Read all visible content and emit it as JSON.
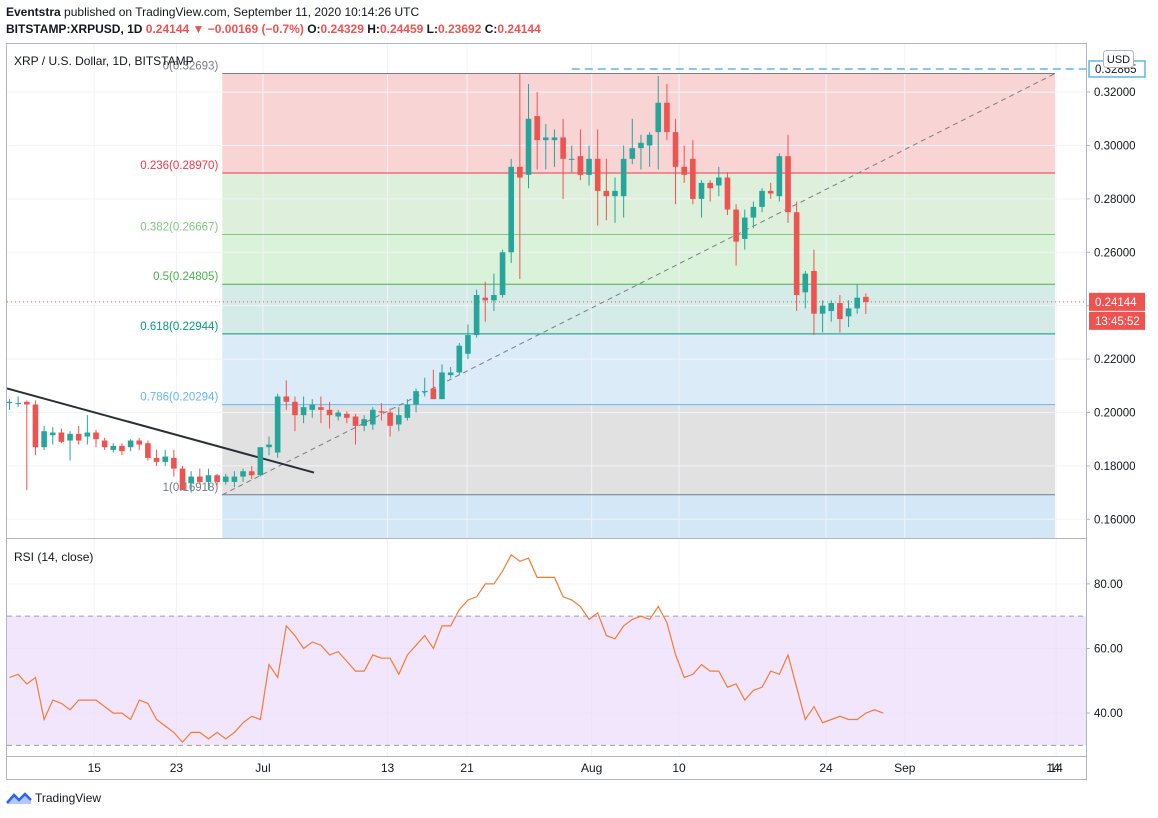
{
  "header": {
    "publisher": "Eventstra",
    "published_text": "published on TradingView.com, September 11, 2020 10:14:26 UTC",
    "symbol": "BITSTAMP:XRPUSD, 1D",
    "last": "0.24144",
    "arrow": "▼",
    "change": "−0.00169 (−0.7%)",
    "o_label": "O:",
    "o": "0.24329",
    "h_label": "H:",
    "h": "0.24459",
    "l_label": "L:",
    "l": "0.23692",
    "c_label": "C:",
    "c": "0.24144"
  },
  "footer": {
    "brand": "TradingView"
  },
  "chart_data": [
    {
      "type": "candlestick",
      "title": "XRP / U.S. Dollar, 1D, BITSTAMP",
      "currency_button": "USD",
      "ylim": [
        0.153,
        0.338
      ],
      "y_ticks": [
        "0.32000",
        "0.30000",
        "0.28000",
        "0.26000",
        "0.24000",
        "0.22000",
        "0.20000",
        "0.18000",
        "0.16000"
      ],
      "y_tick_values": [
        0.32,
        0.3,
        0.28,
        0.26,
        0.24,
        0.22,
        0.2,
        0.18,
        0.16
      ],
      "price_tags": [
        {
          "value": 0.32865,
          "text": "0.32865",
          "style": "outline"
        },
        {
          "value": 0.24144,
          "text": "0.24144",
          "style": "red"
        },
        {
          "text": "13:45:52",
          "style": "red-timer"
        }
      ],
      "fib_levels": [
        {
          "ratio": "0",
          "price": 0.32693,
          "label": "0(0.32693)",
          "color": "#787b86"
        },
        {
          "ratio": "0.236",
          "price": 0.2897,
          "label": "0.236(0.28970)",
          "color": "#f23645"
        },
        {
          "ratio": "0.382",
          "price": 0.26667,
          "label": "0.382(0.26667)",
          "color": "#81c784"
        },
        {
          "ratio": "0.5",
          "price": 0.24805,
          "label": "0.5(0.24805)",
          "color": "#4caf50"
        },
        {
          "ratio": "0.618",
          "price": 0.22944,
          "label": "0.618(0.22944)",
          "color": "#089981"
        },
        {
          "ratio": "0.786",
          "price": 0.20294,
          "label": "0.786(0.20294)",
          "color": "#64b5f6"
        },
        {
          "ratio": "1",
          "price": 0.16918,
          "label": "1(0.16918)",
          "color": "#787b86"
        }
      ],
      "x_ticks": [
        "15",
        "23",
        "Jul",
        "13",
        "21",
        "Aug",
        "10",
        "24",
        "Sep",
        "14"
      ],
      "candles": [
        {
          "o": 0.2035,
          "h": 0.205,
          "l": 0.201,
          "c": 0.204
        },
        {
          "o": 0.2035,
          "h": 0.206,
          "l": 0.202,
          "c": 0.2035
        },
        {
          "o": 0.204,
          "h": 0.2045,
          "l": 0.171,
          "c": 0.203
        },
        {
          "o": 0.203,
          "h": 0.2045,
          "l": 0.184,
          "c": 0.187
        },
        {
          "o": 0.187,
          "h": 0.195,
          "l": 0.186,
          "c": 0.193
        },
        {
          "o": 0.1915,
          "h": 0.1945,
          "l": 0.188,
          "c": 0.1925
        },
        {
          "o": 0.1925,
          "h": 0.194,
          "l": 0.1885,
          "c": 0.189
        },
        {
          "o": 0.1895,
          "h": 0.193,
          "l": 0.182,
          "c": 0.192
        },
        {
          "o": 0.192,
          "h": 0.195,
          "l": 0.188,
          "c": 0.1895
        },
        {
          "o": 0.191,
          "h": 0.199,
          "l": 0.188,
          "c": 0.1925
        },
        {
          "o": 0.1925,
          "h": 0.1935,
          "l": 0.187,
          "c": 0.19
        },
        {
          "o": 0.1895,
          "h": 0.1905,
          "l": 0.186,
          "c": 0.187
        },
        {
          "o": 0.186,
          "h": 0.1885,
          "l": 0.185,
          "c": 0.1875
        },
        {
          "o": 0.1875,
          "h": 0.1885,
          "l": 0.184,
          "c": 0.1855
        },
        {
          "o": 0.187,
          "h": 0.19,
          "l": 0.1855,
          "c": 0.1895
        },
        {
          "o": 0.1895,
          "h": 0.1905,
          "l": 0.186,
          "c": 0.188
        },
        {
          "o": 0.1885,
          "h": 0.1895,
          "l": 0.182,
          "c": 0.183
        },
        {
          "o": 0.183,
          "h": 0.186,
          "l": 0.18,
          "c": 0.1815
        },
        {
          "o": 0.1815,
          "h": 0.186,
          "l": 0.18,
          "c": 0.1835
        },
        {
          "o": 0.183,
          "h": 0.186,
          "l": 0.176,
          "c": 0.179
        },
        {
          "o": 0.179,
          "h": 0.18,
          "l": 0.171,
          "c": 0.171
        },
        {
          "o": 0.1735,
          "h": 0.178,
          "l": 0.17,
          "c": 0.176
        },
        {
          "o": 0.176,
          "h": 0.179,
          "l": 0.173,
          "c": 0.174
        },
        {
          "o": 0.174,
          "h": 0.179,
          "l": 0.171,
          "c": 0.1765
        },
        {
          "o": 0.1765,
          "h": 0.177,
          "l": 0.172,
          "c": 0.174
        },
        {
          "o": 0.174,
          "h": 0.177,
          "l": 0.173,
          "c": 0.176
        },
        {
          "o": 0.174,
          "h": 0.178,
          "l": 0.172,
          "c": 0.176
        },
        {
          "o": 0.176,
          "h": 0.179,
          "l": 0.174,
          "c": 0.178
        },
        {
          "o": 0.178,
          "h": 0.18,
          "l": 0.175,
          "c": 0.1765
        },
        {
          "o": 0.1765,
          "h": 0.187,
          "l": 0.176,
          "c": 0.187
        },
        {
          "o": 0.187,
          "h": 0.191,
          "l": 0.184,
          "c": 0.188
        },
        {
          "o": 0.185,
          "h": 0.207,
          "l": 0.183,
          "c": 0.206
        },
        {
          "o": 0.206,
          "h": 0.212,
          "l": 0.201,
          "c": 0.204
        },
        {
          "o": 0.204,
          "h": 0.206,
          "l": 0.193,
          "c": 0.199
        },
        {
          "o": 0.199,
          "h": 0.206,
          "l": 0.196,
          "c": 0.202
        },
        {
          "o": 0.201,
          "h": 0.205,
          "l": 0.198,
          "c": 0.203
        },
        {
          "o": 0.202,
          "h": 0.206,
          "l": 0.196,
          "c": 0.201
        },
        {
          "o": 0.201,
          "h": 0.204,
          "l": 0.194,
          "c": 0.199
        },
        {
          "o": 0.1985,
          "h": 0.201,
          "l": 0.197,
          "c": 0.2
        },
        {
          "o": 0.1995,
          "h": 0.2005,
          "l": 0.196,
          "c": 0.198
        },
        {
          "o": 0.1985,
          "h": 0.1995,
          "l": 0.188,
          "c": 0.195
        },
        {
          "o": 0.195,
          "h": 0.199,
          "l": 0.193,
          "c": 0.1975
        },
        {
          "o": 0.1955,
          "h": 0.202,
          "l": 0.1935,
          "c": 0.201
        },
        {
          "o": 0.2005,
          "h": 0.2035,
          "l": 0.197,
          "c": 0.2
        },
        {
          "o": 0.2,
          "h": 0.2015,
          "l": 0.191,
          "c": 0.195
        },
        {
          "o": 0.1955,
          "h": 0.202,
          "l": 0.193,
          "c": 0.199
        },
        {
          "o": 0.198,
          "h": 0.205,
          "l": 0.197,
          "c": 0.203
        },
        {
          "o": 0.203,
          "h": 0.209,
          "l": 0.2,
          "c": 0.208
        },
        {
          "o": 0.208,
          "h": 0.213,
          "l": 0.206,
          "c": 0.208
        },
        {
          "o": 0.209,
          "h": 0.216,
          "l": 0.205,
          "c": 0.205
        },
        {
          "o": 0.205,
          "h": 0.218,
          "l": 0.205,
          "c": 0.215
        },
        {
          "o": 0.214,
          "h": 0.217,
          "l": 0.213,
          "c": 0.215
        },
        {
          "o": 0.215,
          "h": 0.226,
          "l": 0.214,
          "c": 0.225
        },
        {
          "o": 0.222,
          "h": 0.233,
          "l": 0.22,
          "c": 0.229
        },
        {
          "o": 0.229,
          "h": 0.246,
          "l": 0.228,
          "c": 0.244
        },
        {
          "o": 0.243,
          "h": 0.249,
          "l": 0.234,
          "c": 0.242
        },
        {
          "o": 0.242,
          "h": 0.252,
          "l": 0.238,
          "c": 0.244
        },
        {
          "o": 0.244,
          "h": 0.261,
          "l": 0.243,
          "c": 0.26
        },
        {
          "o": 0.26,
          "h": 0.295,
          "l": 0.256,
          "c": 0.292
        },
        {
          "o": 0.292,
          "h": 0.327,
          "l": 0.25,
          "c": 0.288
        },
        {
          "o": 0.289,
          "h": 0.323,
          "l": 0.284,
          "c": 0.31
        },
        {
          "o": 0.311,
          "h": 0.32,
          "l": 0.291,
          "c": 0.302
        },
        {
          "o": 0.302,
          "h": 0.308,
          "l": 0.291,
          "c": 0.303
        },
        {
          "o": 0.302,
          "h": 0.306,
          "l": 0.292,
          "c": 0.303
        },
        {
          "o": 0.303,
          "h": 0.31,
          "l": 0.28,
          "c": 0.295
        },
        {
          "o": 0.295,
          "h": 0.3,
          "l": 0.29,
          "c": 0.295
        },
        {
          "o": 0.296,
          "h": 0.306,
          "l": 0.287,
          "c": 0.289
        },
        {
          "o": 0.289,
          "h": 0.3,
          "l": 0.285,
          "c": 0.295
        },
        {
          "o": 0.295,
          "h": 0.306,
          "l": 0.27,
          "c": 0.283
        },
        {
          "o": 0.283,
          "h": 0.295,
          "l": 0.272,
          "c": 0.281
        },
        {
          "o": 0.281,
          "h": 0.288,
          "l": 0.271,
          "c": 0.283
        },
        {
          "o": 0.281,
          "h": 0.3,
          "l": 0.273,
          "c": 0.295
        },
        {
          "o": 0.295,
          "h": 0.31,
          "l": 0.293,
          "c": 0.299
        },
        {
          "o": 0.299,
          "h": 0.304,
          "l": 0.291,
          "c": 0.301
        },
        {
          "o": 0.3,
          "h": 0.305,
          "l": 0.292,
          "c": 0.304
        },
        {
          "o": 0.305,
          "h": 0.326,
          "l": 0.291,
          "c": 0.316
        },
        {
          "o": 0.316,
          "h": 0.323,
          "l": 0.302,
          "c": 0.305
        },
        {
          "o": 0.305,
          "h": 0.31,
          "l": 0.278,
          "c": 0.292
        },
        {
          "o": 0.292,
          "h": 0.3,
          "l": 0.286,
          "c": 0.289
        },
        {
          "o": 0.295,
          "h": 0.302,
          "l": 0.278,
          "c": 0.28
        },
        {
          "o": 0.28,
          "h": 0.287,
          "l": 0.273,
          "c": 0.286
        },
        {
          "o": 0.286,
          "h": 0.287,
          "l": 0.279,
          "c": 0.284
        },
        {
          "o": 0.285,
          "h": 0.292,
          "l": 0.281,
          "c": 0.288
        },
        {
          "o": 0.288,
          "h": 0.29,
          "l": 0.274,
          "c": 0.276
        },
        {
          "o": 0.276,
          "h": 0.278,
          "l": 0.255,
          "c": 0.264
        },
        {
          "o": 0.265,
          "h": 0.276,
          "l": 0.261,
          "c": 0.273
        },
        {
          "o": 0.273,
          "h": 0.279,
          "l": 0.269,
          "c": 0.277
        },
        {
          "o": 0.277,
          "h": 0.284,
          "l": 0.275,
          "c": 0.283
        },
        {
          "o": 0.283,
          "h": 0.286,
          "l": 0.28,
          "c": 0.282
        },
        {
          "o": 0.281,
          "h": 0.297,
          "l": 0.279,
          "c": 0.296
        },
        {
          "o": 0.296,
          "h": 0.304,
          "l": 0.271,
          "c": 0.275
        },
        {
          "o": 0.275,
          "h": 0.279,
          "l": 0.238,
          "c": 0.244
        },
        {
          "o": 0.245,
          "h": 0.253,
          "l": 0.239,
          "c": 0.252
        },
        {
          "o": 0.253,
          "h": 0.261,
          "l": 0.229,
          "c": 0.237
        },
        {
          "o": 0.237,
          "h": 0.242,
          "l": 0.23,
          "c": 0.24
        },
        {
          "o": 0.238,
          "h": 0.242,
          "l": 0.234,
          "c": 0.241
        },
        {
          "o": 0.241,
          "h": 0.244,
          "l": 0.23,
          "c": 0.235
        },
        {
          "o": 0.236,
          "h": 0.242,
          "l": 0.232,
          "c": 0.239
        },
        {
          "o": 0.239,
          "h": 0.248,
          "l": 0.237,
          "c": 0.243
        },
        {
          "o": 0.2433,
          "h": 0.2446,
          "l": 0.2369,
          "c": 0.2414
        }
      ]
    },
    {
      "type": "line",
      "title": "RSI (14, close)",
      "ylim": [
        26.7,
        93.9
      ],
      "y_ticks": [
        "80.00",
        "60.00",
        "40.00"
      ],
      "y_tick_values": [
        80,
        60,
        40
      ],
      "band": [
        30,
        70
      ],
      "values": [
        51,
        52,
        49,
        51,
        38,
        44,
        43,
        41,
        44,
        44,
        44,
        42,
        40,
        40,
        38,
        44,
        43,
        38,
        36,
        34,
        31,
        34,
        34,
        32,
        34,
        32,
        34,
        37,
        39,
        38,
        55,
        51,
        67,
        64,
        60,
        62,
        61,
        58,
        59,
        56,
        53,
        53,
        58,
        57,
        57,
        52,
        58,
        61,
        64,
        60,
        67,
        67,
        72,
        75,
        76,
        80,
        80,
        84,
        89,
        87,
        88,
        82,
        82,
        82,
        76,
        75,
        73,
        69,
        71,
        64,
        63,
        67,
        69,
        70,
        69,
        73,
        68,
        58,
        51,
        52,
        55,
        53,
        53,
        48,
        49,
        44,
        47,
        48,
        53,
        52,
        58,
        48,
        38,
        42,
        37,
        38,
        39,
        38,
        38,
        40,
        41,
        40
      ]
    }
  ]
}
